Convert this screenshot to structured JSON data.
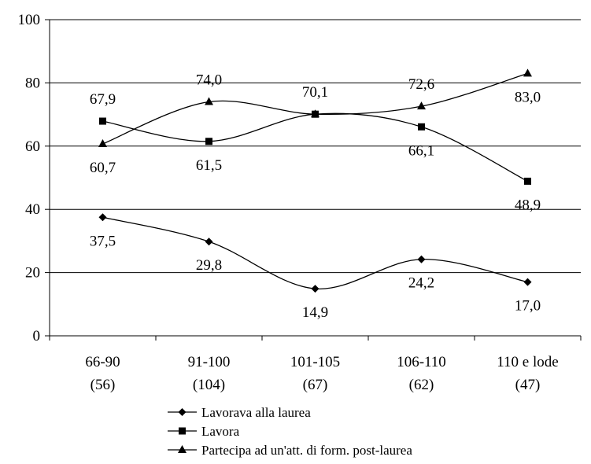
{
  "chart_data": {
    "type": "line",
    "categories": [
      "66-90",
      "91-100",
      "101-105",
      "106-110",
      "110 e lode"
    ],
    "category_counts": [
      "(56)",
      "(104)",
      "(67)",
      "(62)",
      "(47)"
    ],
    "ylim": [
      0,
      100
    ],
    "yticks": [
      "0",
      "20",
      "40",
      "60",
      "80",
      "100"
    ],
    "grid": true,
    "legend_position": "bottom",
    "series": [
      {
        "name": "Lavorava alla laurea",
        "marker": "diamond",
        "values": [
          37.5,
          29.8,
          14.9,
          24.2,
          17.0
        ],
        "labels": [
          "37,5",
          "29,8",
          "14,9",
          "24,2",
          "17,0"
        ],
        "label_pos": [
          "below",
          "below",
          "below",
          "below",
          "below"
        ]
      },
      {
        "name": "Lavora",
        "marker": "square",
        "values": [
          67.9,
          61.5,
          70.1,
          66.1,
          48.9
        ],
        "labels": [
          "67,9",
          "61,5",
          "70,1",
          "66,1",
          "48,9"
        ],
        "label_pos": [
          "above",
          "below",
          "above",
          "below",
          "below"
        ]
      },
      {
        "name": "Partecipa ad un'att. di form. post-laurea",
        "marker": "triangle",
        "values": [
          60.7,
          74.0,
          70.1,
          72.6,
          83.0
        ],
        "labels": [
          "60,7",
          "74,0",
          "",
          "72,6",
          "83,0"
        ],
        "label_pos": [
          "below",
          "above",
          "above",
          "above",
          "below"
        ]
      }
    ]
  }
}
